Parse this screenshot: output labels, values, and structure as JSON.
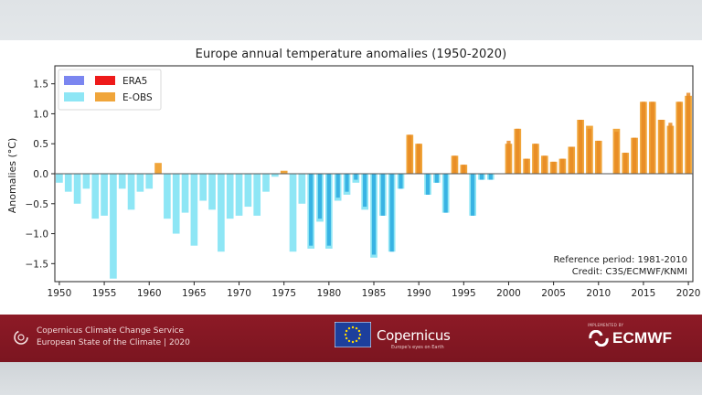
{
  "title": "Europe annual temperature anomalies (1950-2020)",
  "colors": {
    "era5_legend": "#7b86f0",
    "era5_light_legend": "#ee1a1a",
    "eobs_cold": "#8ee6f5",
    "eobs_warm": "#f0a53a",
    "era5_cold": "#29a9df",
    "era5_warm": "#e88a23",
    "footer": "#861824"
  },
  "legend": [
    {
      "label": "ERA5",
      "swatches": [
        "#7b86f0",
        "#ee1a1a"
      ]
    },
    {
      "label": "E-OBS",
      "swatches": [
        "#8ee6f5",
        "#f0a53a"
      ]
    }
  ],
  "annotations": {
    "reference": "Reference period: 1981-2010",
    "credit": "Credit: C3S/ECMWF/KNMI"
  },
  "chart_data": {
    "type": "bar",
    "title": "Europe annual temperature anomalies (1950-2020)",
    "xlabel": "",
    "ylabel": "Anomalies (°C)",
    "xlim": [
      1949.5,
      2020.5
    ],
    "ylim": [
      -1.8,
      1.8
    ],
    "yticks": [
      -1.5,
      -1.0,
      -0.5,
      0.0,
      0.5,
      1.0,
      1.5
    ],
    "ytick_labels": [
      "−1.5",
      "−1.0",
      "−0.5",
      "0.0",
      "0.5",
      "1.0",
      "1.5"
    ],
    "xticks": [
      1950,
      1955,
      1960,
      1965,
      1970,
      1975,
      1980,
      1985,
      1990,
      1995,
      2000,
      2005,
      2010,
      2015,
      2020
    ],
    "grid": false,
    "legend_position": "top-left",
    "years": [
      1950,
      1951,
      1952,
      1953,
      1954,
      1955,
      1956,
      1957,
      1958,
      1959,
      1960,
      1961,
      1962,
      1963,
      1964,
      1965,
      1966,
      1967,
      1968,
      1969,
      1970,
      1971,
      1972,
      1973,
      1974,
      1975,
      1976,
      1977,
      1978,
      1979,
      1980,
      1981,
      1982,
      1983,
      1984,
      1985,
      1986,
      1987,
      1988,
      1989,
      1990,
      1991,
      1992,
      1993,
      1994,
      1995,
      1996,
      1997,
      1998,
      1999,
      2000,
      2001,
      2002,
      2003,
      2004,
      2005,
      2006,
      2007,
      2008,
      2009,
      2010,
      2011,
      2012,
      2013,
      2014,
      2015,
      2016,
      2017,
      2018,
      2019,
      2020
    ],
    "series": [
      {
        "name": "E-OBS",
        "values": [
          -0.15,
          -0.3,
          -0.5,
          -0.25,
          -0.75,
          -0.7,
          -1.75,
          -0.25,
          -0.6,
          -0.3,
          -0.25,
          0.18,
          -0.75,
          -1.0,
          -0.65,
          -1.2,
          -0.45,
          -0.6,
          -1.3,
          -0.75,
          -0.7,
          -0.55,
          -0.7,
          -0.3,
          -0.05,
          0.05,
          -1.3,
          -0.5,
          -1.25,
          -0.8,
          -1.25,
          -0.45,
          -0.35,
          -0.15,
          -0.6,
          -1.4,
          -0.7,
          -1.3,
          -0.25,
          0.65,
          0.5,
          -0.35,
          -0.15,
          -0.65,
          0.3,
          0.15,
          -0.7,
          -0.1,
          -0.1,
          0.0,
          0.5,
          0.75,
          0.25,
          0.5,
          0.3,
          0.2,
          0.25,
          0.45,
          0.9,
          0.8,
          0.55,
          0.0,
          0.75,
          0.35,
          0.6,
          1.2,
          1.2,
          0.9,
          0.8,
          1.2,
          1.3
        ]
      },
      {
        "name": "ERA5",
        "values": [
          null,
          null,
          null,
          null,
          null,
          null,
          null,
          null,
          null,
          null,
          null,
          null,
          null,
          null,
          null,
          null,
          null,
          null,
          null,
          null,
          null,
          null,
          null,
          null,
          null,
          null,
          null,
          null,
          -1.2,
          -0.75,
          -1.2,
          -0.4,
          -0.3,
          -0.1,
          -0.55,
          -1.35,
          -0.7,
          -1.3,
          -0.25,
          0.65,
          0.5,
          -0.35,
          -0.15,
          -0.65,
          0.3,
          0.15,
          -0.7,
          -0.1,
          -0.1,
          0.0,
          0.55,
          0.75,
          0.25,
          0.5,
          0.3,
          0.2,
          0.25,
          0.45,
          0.9,
          0.75,
          0.55,
          0.0,
          0.7,
          0.35,
          0.6,
          1.2,
          1.2,
          0.9,
          0.85,
          1.2,
          1.35
        ]
      }
    ]
  },
  "footer": {
    "line1": "Copernicus Climate Change Service",
    "line2": "European State of the Climate | 2020",
    "brand": "Copernicus",
    "brand_sub": "Europe's eyes on Earth",
    "implemented_by": "IMPLEMENTED BY",
    "ecmwf": "ECMWF"
  }
}
